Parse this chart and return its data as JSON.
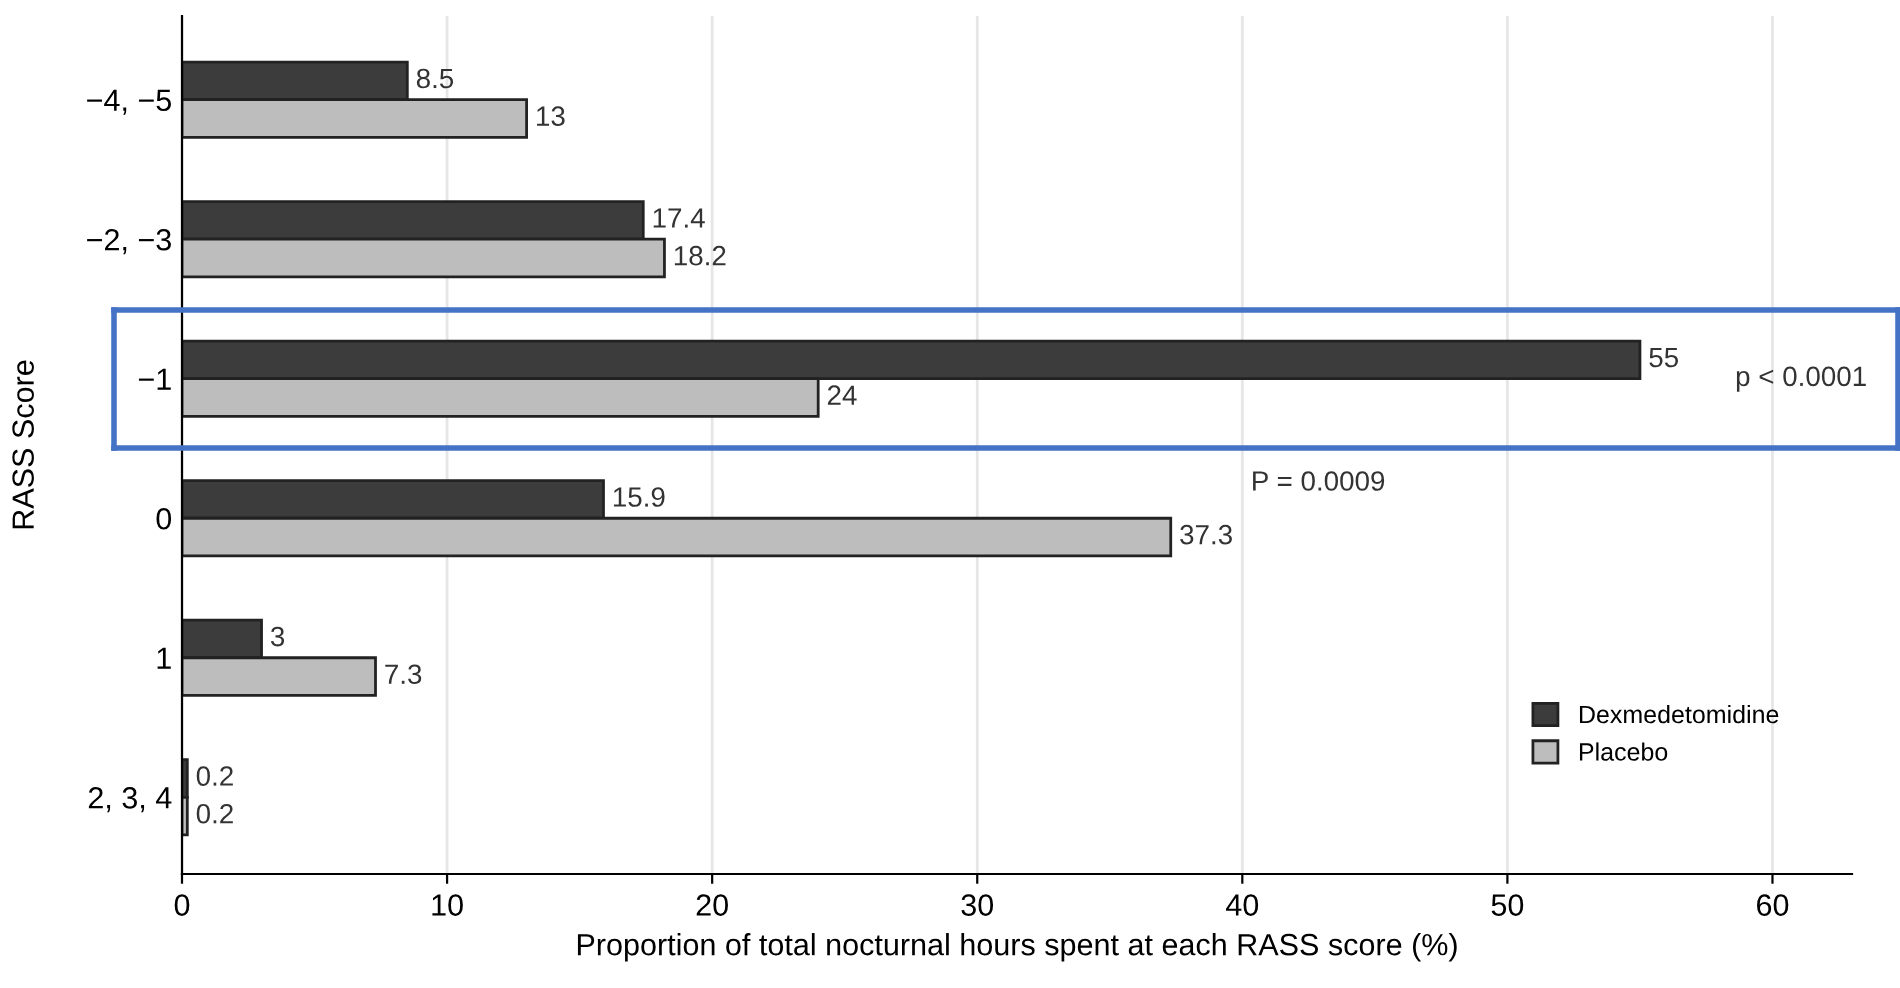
{
  "chart_data": {
    "type": "bar",
    "orientation": "horizontal",
    "ylabel": "RASS Score",
    "xlabel": "Proportion of total nocturnal hours spent at each RASS score (%)",
    "categories": [
      "−4, −5",
      "−2, −3",
      "−1",
      "0",
      "1",
      "2, 3, 4"
    ],
    "series": [
      {
        "name": "Dexmedetomidine",
        "color": "#3c3c3c",
        "values": [
          8.5,
          17.4,
          55,
          15.9,
          3,
          0.2
        ]
      },
      {
        "name": "Placebo",
        "color": "#bdbdbd",
        "values": [
          13,
          18.2,
          24,
          37.3,
          7.3,
          0.2
        ]
      }
    ],
    "xlim": [
      0,
      63
    ],
    "xticks": [
      0,
      10,
      20,
      30,
      40,
      50,
      60
    ],
    "grid": "x",
    "legend": "bottom right",
    "data_labels": true,
    "annotations": [
      "p < 0.0001",
      "P = 0.0009"
    ]
  }
}
